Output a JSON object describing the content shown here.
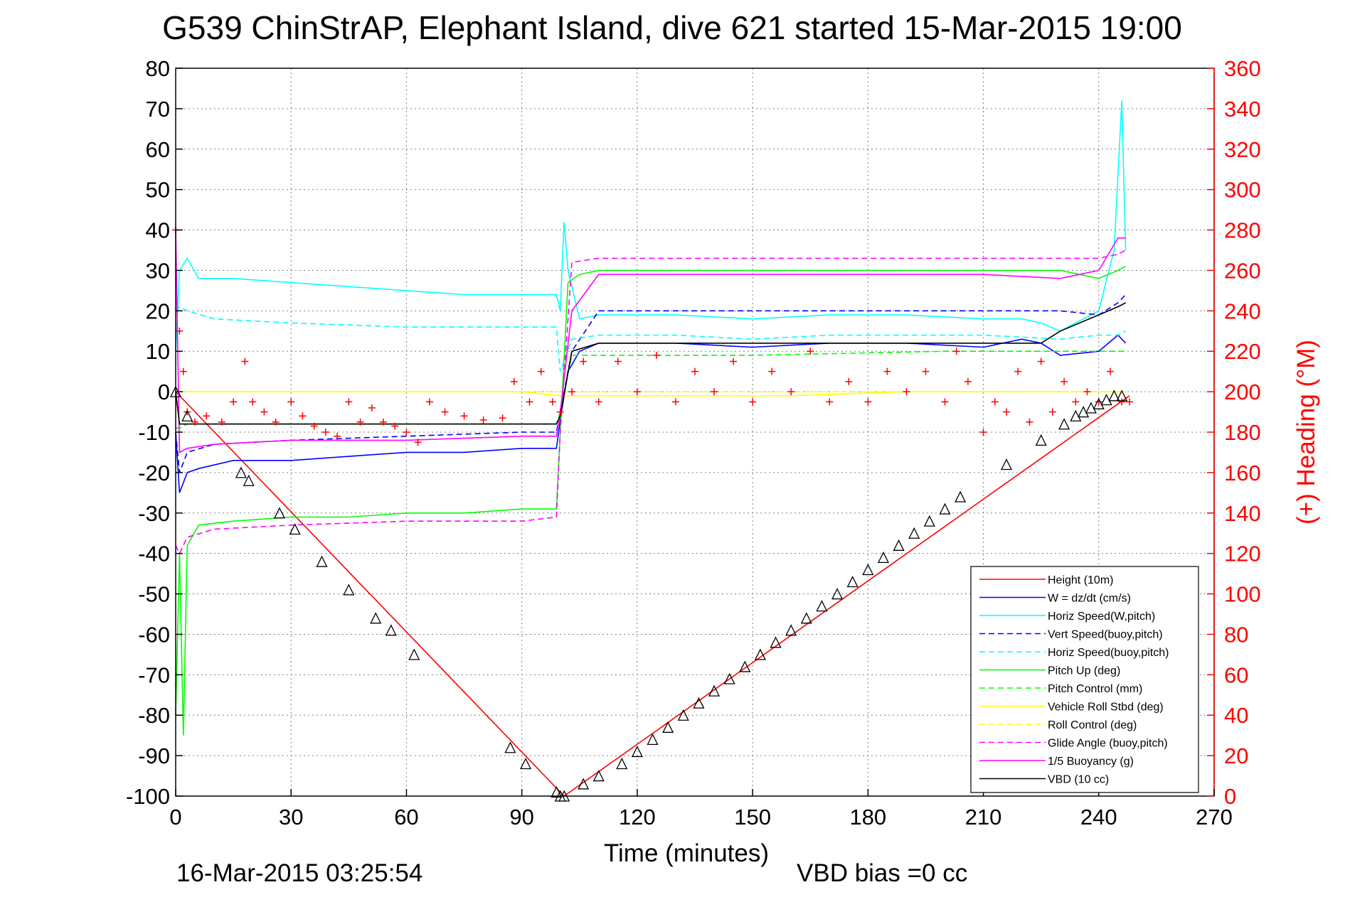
{
  "chart_data": {
    "type": "line",
    "title": "G539 ChinStrAP, Elephant Island, dive 621 started 15-Mar-2015 19:00",
    "xlabel": "Time (minutes)",
    "ylabel": "",
    "ylabel_right": "(+) Heading (°M)",
    "xlim": [
      0,
      270
    ],
    "ylim": [
      -100,
      80
    ],
    "ylim_right": [
      0,
      360
    ],
    "x_ticks": [
      "0",
      "30",
      "60",
      "90",
      "120",
      "150",
      "180",
      "210",
      "240",
      "270"
    ],
    "y_ticks": [
      "80",
      "70",
      "60",
      "50",
      "40",
      "30",
      "20",
      "10",
      "0",
      "-10",
      "-20",
      "-30",
      "-40",
      "-50",
      "-60",
      "-70",
      "-80",
      "-90",
      "-100"
    ],
    "y_ticks_right": [
      "360",
      "340",
      "320",
      "300",
      "280",
      "260",
      "240",
      "220",
      "200",
      "180",
      "160",
      "140",
      "120",
      "100",
      "80",
      "60",
      "40",
      "20",
      "0"
    ],
    "grid": true,
    "legend_position": "bottom-right",
    "footer_left": "16-Mar-2015 03:25:54",
    "footer_right": "VBD bias =0 cc",
    "series": [
      {
        "name": "Height (10m)",
        "color": "#ff0000",
        "style": "solid",
        "axis": "left",
        "x": [
          0,
          101,
          248
        ],
        "y": [
          0,
          -100,
          -1
        ]
      },
      {
        "name": "W = dz/dt (cm/s)",
        "color": "#0000ff",
        "style": "solid",
        "axis": "left",
        "x": [
          0,
          1,
          3,
          6,
          15,
          30,
          45,
          60,
          75,
          90,
          99,
          100,
          102,
          105,
          110,
          130,
          150,
          170,
          190,
          210,
          220,
          225,
          230,
          240,
          245,
          247
        ],
        "y": [
          -10,
          -25,
          -20,
          -19,
          -17,
          -17,
          -16,
          -15,
          -15,
          -14,
          -14,
          -7,
          5,
          10,
          12,
          12,
          11,
          12,
          12,
          11,
          13,
          12,
          9,
          10,
          14,
          12
        ]
      },
      {
        "name": "Horiz Speed(W,pitch)",
        "color": "#00ffff",
        "style": "solid",
        "axis": "left",
        "x": [
          0,
          1,
          3,
          6,
          15,
          30,
          45,
          60,
          75,
          90,
          99,
          100,
          101,
          102,
          105,
          110,
          130,
          150,
          170,
          190,
          210,
          220,
          225,
          230,
          240,
          244,
          246,
          247
        ],
        "y": [
          10,
          30,
          33,
          28,
          28,
          27,
          26,
          25,
          24,
          24,
          24,
          20,
          42,
          30,
          18,
          19,
          19,
          18,
          19,
          19,
          18,
          18,
          17,
          15,
          20,
          35,
          72,
          35
        ]
      },
      {
        "name": "Vert Speed(buoy,pitch)",
        "color": "#0000ff",
        "style": "dashed",
        "axis": "left",
        "x": [
          0,
          1,
          3,
          10,
          30,
          60,
          90,
          99,
          100,
          103,
          110,
          130,
          150,
          170,
          190,
          210,
          230,
          240,
          245,
          247
        ],
        "y": [
          -10,
          -20,
          -15,
          -13,
          -12,
          -11,
          -10,
          -10,
          -5,
          10,
          20,
          20,
          20,
          20,
          20,
          20,
          20,
          19,
          22,
          24
        ]
      },
      {
        "name": "Horiz Speed(buoy,pitch)",
        "color": "#00ffff",
        "style": "dashed",
        "axis": "left",
        "x": [
          0,
          1,
          3,
          10,
          30,
          60,
          90,
          99,
          100,
          103,
          110,
          130,
          150,
          170,
          190,
          210,
          230,
          240,
          245,
          247
        ],
        "y": [
          20,
          21,
          20,
          18,
          17,
          16,
          16,
          16,
          5,
          13,
          14,
          14,
          13,
          14,
          14,
          14,
          13,
          14,
          14,
          15
        ]
      },
      {
        "name": "Pitch Up (deg)",
        "color": "#00ff00",
        "style": "solid",
        "axis": "left",
        "x": [
          0,
          1,
          2,
          3,
          6,
          15,
          30,
          45,
          60,
          75,
          90,
          99,
          100,
          102,
          105,
          110,
          130,
          150,
          170,
          190,
          210,
          230,
          240,
          245,
          247
        ],
        "y": [
          -80,
          -40,
          -85,
          -38,
          -33,
          -32,
          -31,
          -31,
          -30,
          -30,
          -29,
          -29,
          -10,
          27,
          29,
          30,
          30,
          30,
          30,
          30,
          30,
          30,
          28,
          30,
          31
        ]
      },
      {
        "name": "Pitch Control (mm)",
        "color": "#00ff00",
        "style": "dashed",
        "axis": "left",
        "x": [
          0,
          1,
          3,
          90,
          99,
          100,
          103,
          110,
          150,
          200,
          247
        ],
        "y": [
          -9,
          -9,
          -8,
          -8,
          -8,
          -5,
          9,
          9,
          9,
          10,
          10
        ]
      },
      {
        "name": "Vehicle Roll Stbd (deg)",
        "color": "#ffff00",
        "style": "solid",
        "axis": "left",
        "x": [
          0,
          5,
          30,
          60,
          90,
          100,
          130,
          160,
          190,
          220,
          247
        ],
        "y": [
          0,
          0,
          0,
          0,
          0,
          -1,
          -1,
          -1,
          0,
          0,
          0
        ]
      },
      {
        "name": "Roll Control (deg)",
        "color": "#ffff00",
        "style": "dashed",
        "axis": "left",
        "x": [
          0,
          5,
          30,
          60,
          90,
          100,
          130,
          160,
          190,
          220,
          247
        ],
        "y": [
          0,
          0,
          0,
          0,
          0,
          0,
          0,
          0,
          0,
          0,
          0
        ]
      },
      {
        "name": "Glide Angle (buoy,pitch)",
        "color": "#ff00ff",
        "style": "dashed",
        "axis": "left",
        "x": [
          0,
          1,
          3,
          10,
          30,
          60,
          90,
          99,
          100,
          103,
          110,
          130,
          150,
          170,
          190,
          210,
          230,
          240,
          245,
          247
        ],
        "y": [
          -38,
          -40,
          -36,
          -34,
          -33,
          -32,
          -32,
          -31,
          -10,
          32,
          33,
          33,
          33,
          33,
          33,
          33,
          33,
          33,
          34,
          35
        ]
      },
      {
        "name": "1/5 Buoyancy (g)",
        "color": "#ff00ff",
        "style": "solid",
        "axis": "left",
        "x": [
          0,
          1,
          3,
          10,
          30,
          60,
          90,
          99,
          100,
          103,
          110,
          130,
          150,
          170,
          190,
          210,
          230,
          240,
          245,
          247
        ],
        "y": [
          40,
          -15,
          -14,
          -13,
          -12,
          -12,
          -11,
          -11,
          -5,
          20,
          29,
          29,
          29,
          29,
          29,
          29,
          28,
          30,
          38,
          38
        ]
      },
      {
        "name": "VBD (10 cc)",
        "color": "#000000",
        "style": "solid",
        "axis": "left",
        "x": [
          0,
          1,
          3,
          99,
          100,
          103,
          110,
          150,
          180,
          200,
          210,
          225,
          230,
          240,
          245,
          247
        ],
        "y": [
          0,
          -8,
          -8,
          -8,
          -6,
          10,
          12,
          12,
          12,
          12,
          12,
          12,
          15,
          19,
          21,
          22
        ]
      }
    ],
    "heading": {
      "name": "(+) Heading (°M)",
      "color": "#ff0000",
      "axis": "right",
      "x": [
        0,
        1,
        2,
        3,
        5,
        8,
        12,
        15,
        18,
        20,
        23,
        26,
        30,
        33,
        36,
        39,
        42,
        45,
        48,
        51,
        54,
        57,
        60,
        63,
        66,
        70,
        75,
        80,
        85,
        88,
        92,
        95,
        98,
        100,
        103,
        106,
        110,
        115,
        120,
        125,
        130,
        135,
        140,
        145,
        150,
        155,
        160,
        165,
        170,
        175,
        180,
        185,
        190,
        195,
        200,
        203,
        206,
        210,
        213,
        216,
        219,
        222,
        225,
        228,
        231,
        234,
        237,
        240,
        243,
        246,
        248
      ],
      "y": [
        280,
        230,
        210,
        190,
        185,
        188,
        185,
        195,
        215,
        195,
        190,
        185,
        195,
        188,
        183,
        180,
        178,
        195,
        185,
        192,
        185,
        183,
        180,
        175,
        195,
        190,
        188,
        186,
        187,
        205,
        195,
        210,
        195,
        190,
        200,
        215,
        195,
        215,
        200,
        218,
        195,
        210,
        200,
        215,
        195,
        210,
        200,
        220,
        195,
        205,
        195,
        210,
        200,
        210,
        195,
        220,
        205,
        180,
        195,
        190,
        210,
        185,
        215,
        190,
        205,
        195,
        200,
        195,
        210,
        195,
        195
      ]
    },
    "markers": {
      "name": "Height (10m)",
      "shape": "triangle",
      "axis": "left",
      "x": [
        0,
        3,
        17,
        19,
        27,
        31,
        38,
        45,
        52,
        56,
        62,
        87,
        91,
        99,
        100,
        101,
        106,
        110,
        116,
        120,
        124,
        128,
        132,
        136,
        140,
        144,
        148,
        152,
        156,
        160,
        164,
        168,
        172,
        176,
        180,
        184,
        188,
        192,
        196,
        200,
        204,
        216,
        225,
        231,
        234,
        236,
        238,
        240,
        242,
        244,
        246
      ],
      "y": [
        0,
        -6,
        -20,
        -22,
        -30,
        -34,
        -42,
        -49,
        -56,
        -59,
        -65,
        -88,
        -92,
        -99,
        -100,
        -100,
        -97,
        -95,
        -92,
        -89,
        -86,
        -83,
        -80,
        -77,
        -74,
        -71,
        -68,
        -65,
        -62,
        -59,
        -56,
        -53,
        -50,
        -47,
        -44,
        -41,
        -38,
        -35,
        -32,
        -29,
        -26,
        -18,
        -12,
        -8,
        -6,
        -5,
        -4,
        -3,
        -2,
        -1,
        -1
      ]
    }
  }
}
